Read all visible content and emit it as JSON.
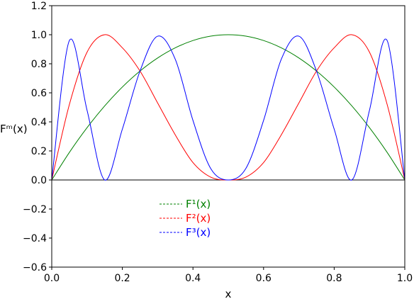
{
  "chart_data": {
    "type": "line",
    "xlabel": "x",
    "ylabel": "Fᵐ(x)",
    "xlim": [
      0.0,
      1.0
    ],
    "ylim": [
      -0.6,
      1.2
    ],
    "xticks": [
      "0.0",
      "0.2",
      "0.4",
      "0.6",
      "0.8",
      "1.0"
    ],
    "yticks": [
      "−0.6",
      "−0.4",
      "−0.2",
      "0.0",
      "0.2",
      "0.4",
      "0.6",
      "0.8",
      "1.0",
      "1.2"
    ],
    "zero_line": true,
    "grid": false,
    "legend_position": "lower-left, inside axes",
    "x": [
      0.0,
      0.05,
      0.1,
      0.15,
      0.2,
      0.25,
      0.3,
      0.35,
      0.4,
      0.45,
      0.5,
      0.55,
      0.6,
      0.65,
      0.7,
      0.75,
      0.8,
      0.85,
      0.9,
      0.95,
      1.0
    ],
    "series": [
      {
        "name": "F¹(x)",
        "color": "#008000",
        "line_style": "solid",
        "values": [
          0.0,
          0.19,
          0.36,
          0.51,
          0.64,
          0.75,
          0.84,
          0.91,
          0.96,
          0.99,
          1.0,
          0.99,
          0.96,
          0.91,
          0.84,
          0.75,
          0.64,
          0.51,
          0.36,
          0.19,
          0.0
        ]
      },
      {
        "name": "F²(x)",
        "color": "#ff0000",
        "line_style": "solid",
        "values": [
          0.0,
          0.52,
          0.88,
          1.0,
          0.91,
          0.75,
          0.53,
          0.31,
          0.12,
          0.02,
          0.0,
          0.02,
          0.12,
          0.31,
          0.53,
          0.75,
          0.91,
          1.0,
          0.88,
          0.52,
          0.0
        ]
      },
      {
        "name": "F³(x)",
        "color": "#0000ff",
        "line_style": "solid",
        "values": [
          0.0,
          0.96,
          0.48,
          0.0,
          0.35,
          0.75,
          0.99,
          0.83,
          0.41,
          0.08,
          0.0,
          0.08,
          0.41,
          0.83,
          0.99,
          0.75,
          0.35,
          0.0,
          0.48,
          0.96,
          0.0
        ]
      }
    ]
  }
}
